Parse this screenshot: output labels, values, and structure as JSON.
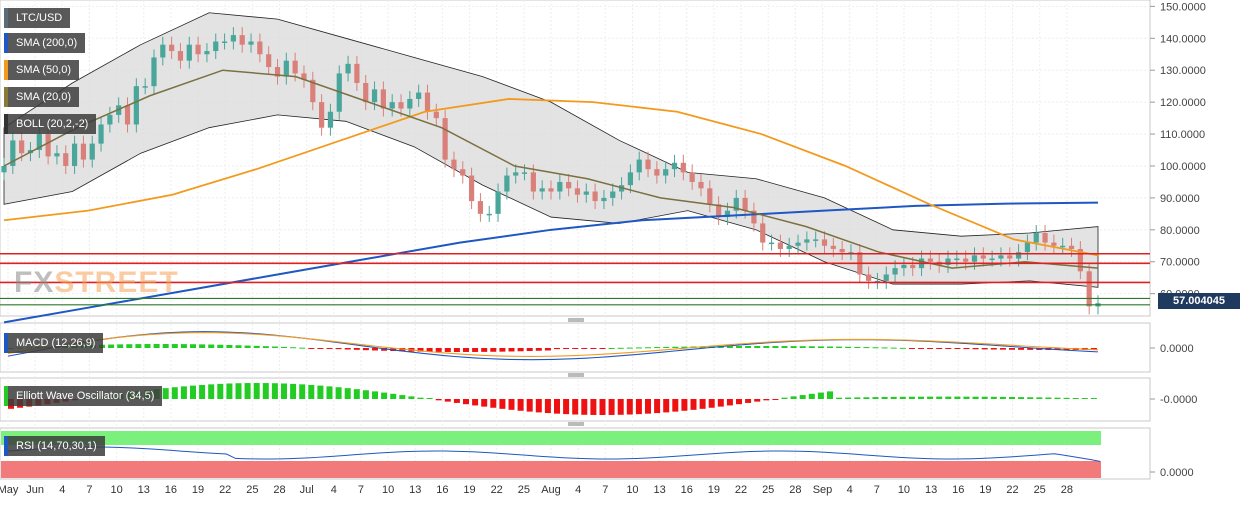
{
  "main": {
    "legend": [
      {
        "label": "LTC/USD",
        "color": "#5a6b7a"
      },
      {
        "label": "SMA (200,0)",
        "color": "#1f57c3"
      },
      {
        "label": "SMA (50,0)",
        "color": "#f39a1e"
      },
      {
        "label": "SMA (20,0)",
        "color": "#8a7a3a"
      },
      {
        "label": "BOLL (20,2,-2)",
        "color": "#333333"
      }
    ],
    "watermark_fx": "FX",
    "watermark_street": "STREET",
    "current_price": "57.004045"
  },
  "panels": {
    "macd": {
      "label": "MACD (12,26,9)",
      "axis_label": "0.0000"
    },
    "ewo": {
      "label": "Elliott Wave Oscillator (34,5)",
      "axis_label": "-0.0000"
    },
    "rsi": {
      "label": "RSI (14,70,30,1)",
      "axis_label": "0.0000"
    }
  },
  "colors": {
    "bull": "#4aa59a",
    "bear": "#d9807a",
    "sma200": "#1f57c3",
    "sma50": "#f39a1e",
    "sma20": "#7a7040",
    "boll_fill": "#d9d9d9",
    "resistance": "#e02020",
    "support": "#2a7a2a",
    "hist_pos": "#22cc22",
    "hist_neg": "#ee1111",
    "rsi_over": "#7cf07c",
    "rsi_under": "#f27a7a"
  },
  "chart_data": {
    "type": "candlestick",
    "instrument": "LTC/USD",
    "y_ticks": [
      60,
      70,
      80,
      90,
      100,
      110,
      120,
      130,
      140,
      150
    ],
    "y_tick_labels": [
      "60.0000",
      "70.0000",
      "80.0000",
      "90.0000",
      "100.0000",
      "110.0000",
      "120.0000",
      "130.0000",
      "140.0000",
      "150.0000"
    ],
    "ylim": [
      53,
      152
    ],
    "x_tick_labels": [
      "May",
      "Jun",
      "4",
      "7",
      "10",
      "13",
      "16",
      "19",
      "22",
      "25",
      "28",
      "Jul",
      "4",
      "7",
      "10",
      "13",
      "16",
      "19",
      "22",
      "25",
      "Aug",
      "4",
      "7",
      "10",
      "13",
      "16",
      "19",
      "22",
      "25",
      "28",
      "Sep",
      "4",
      "7",
      "10",
      "13",
      "16",
      "19",
      "22",
      "25",
      "28"
    ],
    "ohlc_closes": [
      100,
      108,
      104,
      105,
      110,
      103,
      104,
      100,
      107,
      102,
      107,
      113,
      116,
      119,
      113,
      125,
      125,
      134,
      138,
      136,
      133,
      138,
      135,
      136,
      139,
      139,
      141,
      138,
      139,
      135,
      131,
      128,
      133,
      129,
      127,
      120,
      112,
      117,
      129,
      132,
      126,
      120,
      124,
      118,
      120,
      118,
      121,
      123,
      117,
      115,
      102,
      99,
      97,
      89,
      85,
      85,
      92,
      97,
      98,
      98,
      92,
      93,
      92,
      95,
      93,
      91,
      92,
      89,
      90,
      92,
      94,
      98,
      102,
      99,
      97,
      99,
      101,
      98,
      95,
      93,
      88,
      84,
      86,
      90,
      86,
      82,
      76,
      76,
      74,
      75,
      76,
      77,
      77,
      75,
      74,
      73,
      73,
      66,
      64,
      64,
      66,
      68,
      69,
      68,
      71,
      70,
      69,
      71,
      71,
      70,
      72,
      71,
      71,
      72,
      71,
      73,
      76,
      79,
      76,
      75,
      75,
      74,
      67,
      56,
      57
    ],
    "series": [
      {
        "name": "SMA (200,0)",
        "values": [
          51,
          56,
          61,
          66,
          71,
          76,
          80,
          83,
          84.5,
          86,
          87.5,
          88.2,
          88.5
        ]
      },
      {
        "name": "SMA (50,0)",
        "values": [
          83,
          86,
          91,
          99,
          108,
          117,
          121,
          120,
          117,
          110,
          100,
          88,
          77,
          72
        ]
      },
      {
        "name": "SMA (20,0)",
        "values": [
          100,
          112,
          122,
          130,
          128,
          120,
          112,
          100,
          96,
          90,
          87,
          81,
          73,
          68,
          70,
          68
        ]
      }
    ],
    "horizontal_levels": {
      "resistance": [
        72.5,
        69.5,
        63.5
      ],
      "support": [
        58.5,
        56.5
      ]
    },
    "grid": true,
    "legend_position": "top-left"
  }
}
